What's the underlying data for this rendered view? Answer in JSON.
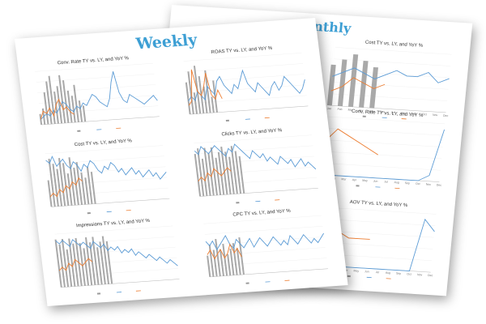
{
  "weekly": {
    "heading": "Weekly",
    "charts": [
      {
        "id": "w-conv",
        "title": "Conv. Rate TY vs. LY, and YoY %",
        "ly": [
          2,
          3,
          4,
          3,
          5,
          4,
          6,
          8,
          7,
          5,
          4,
          6,
          5,
          7,
          6,
          8,
          10,
          9,
          7,
          6,
          5,
          8,
          14,
          18,
          10,
          7,
          6,
          9,
          8,
          7,
          6,
          5,
          6,
          7,
          8,
          6
        ],
        "ty": [
          2,
          5,
          4,
          6,
          3,
          7,
          9,
          5,
          6,
          4,
          3
        ],
        "bars": [
          2,
          3,
          6,
          8,
          9,
          6,
          7,
          9,
          8,
          6,
          5,
          7,
          4,
          3
        ],
        "lmax": 20
      },
      {
        "id": "w-roas",
        "title": "ROAS TY vs. LY, and YoY %",
        "ly": [
          3,
          4,
          3,
          5,
          4,
          3,
          6,
          5,
          4,
          7,
          8,
          6,
          5,
          4,
          6,
          5,
          7,
          9,
          6,
          5,
          4,
          6,
          5,
          4,
          3,
          5,
          6,
          4,
          5,
          7,
          6,
          5,
          4,
          3,
          4,
          6
        ],
        "ty": [
          2,
          3,
          10,
          5,
          4,
          6,
          9,
          4,
          3,
          5,
          3
        ],
        "bars": [
          6,
          8,
          4,
          9,
          7,
          5,
          8,
          3,
          6
        ],
        "lmax": 12
      },
      {
        "id": "w-cost",
        "title": "Cost TY vs. LY, and YoY %",
        "ly": [
          14,
          13,
          15,
          12,
          13,
          14,
          12,
          11,
          13,
          12,
          10,
          12,
          11,
          13,
          12,
          10,
          9,
          11,
          10,
          12,
          11,
          9,
          10,
          8,
          9,
          10,
          8,
          9,
          7,
          8,
          9,
          7,
          8,
          6,
          7,
          8
        ],
        "ty": [
          3,
          4,
          3,
          5,
          4,
          6,
          5,
          7,
          6,
          8,
          7
        ],
        "bars": [
          5,
          9,
          8,
          7,
          9,
          8,
          6,
          9,
          7,
          8,
          6,
          5,
          7,
          6
        ],
        "lmax": 16
      },
      {
        "id": "w-clicks",
        "title": "Clicks TY vs. LY, and YoY %",
        "ly": [
          12,
          11,
          13,
          12,
          11,
          12,
          13,
          12,
          11,
          10,
          12,
          11,
          13,
          12,
          11,
          10,
          9,
          11,
          10,
          9,
          10,
          8,
          9,
          8,
          7,
          9,
          8,
          7,
          8,
          6,
          7,
          8,
          6,
          7,
          6,
          5
        ],
        "ty": [
          4,
          5,
          4,
          6,
          5,
          7,
          6,
          5,
          6,
          7,
          6
        ],
        "bars": [
          8,
          9,
          7,
          9,
          8,
          9,
          7,
          8,
          9,
          8,
          7,
          9,
          8,
          7
        ],
        "lmax": 14
      },
      {
        "id": "w-impr",
        "title": "Impressions TY vs. LY, and YoY %",
        "ly": [
          14,
          13,
          14,
          13,
          12,
          14,
          13,
          12,
          13,
          12,
          11,
          13,
          12,
          11,
          12,
          10,
          11,
          10,
          11,
          9,
          10,
          9,
          10,
          8,
          9,
          8,
          7,
          8,
          7,
          6,
          7,
          6,
          5,
          6,
          5,
          4
        ],
        "ty": [
          5,
          6,
          5,
          7,
          6,
          8,
          7,
          6,
          7,
          8,
          7
        ],
        "bars": [
          9,
          8,
          9,
          7,
          9,
          8,
          9,
          8,
          7,
          9,
          8,
          9,
          7,
          8,
          9,
          8
        ],
        "lmax": 16
      },
      {
        "id": "w-cpc",
        "title": "CPC TY vs. LY, and YoY %",
        "ly": [
          8,
          7,
          8,
          6,
          7,
          8,
          9,
          7,
          6,
          8,
          7,
          6,
          7,
          8,
          6,
          7,
          8,
          7,
          6,
          7,
          8,
          7,
          6,
          7,
          6,
          8,
          7,
          6,
          7,
          8,
          7,
          6,
          7,
          6,
          7,
          8
        ],
        "ty": [
          5,
          6,
          4,
          5,
          6,
          4,
          5,
          7,
          5,
          6,
          4
        ],
        "bars": [
          4,
          6,
          5,
          7,
          5,
          6,
          4,
          5,
          6,
          5,
          7
        ],
        "lmax": 12
      }
    ]
  },
  "monthly": {
    "heading": "Monthly",
    "charts": [
      {
        "id": "m-ctr",
        "title": "CTR TY vs. LY, and YoY %",
        "ly": [
          8,
          9,
          10,
          8,
          9,
          9,
          10,
          11,
          10,
          9,
          8,
          9
        ],
        "ty": [
          4,
          5,
          6,
          5,
          4,
          4
        ],
        "bars": [
          6,
          9,
          8,
          8,
          7,
          6
        ],
        "lmax": 12
      },
      {
        "id": "m-cost",
        "title": "Cost TY vs. LY, and YoY %",
        "ly": [
          6,
          7,
          8,
          7,
          6,
          7,
          8,
          7,
          7,
          8,
          6,
          7
        ],
        "ty": [
          3,
          4,
          6,
          5,
          4,
          5
        ],
        "bars": [
          7,
          8,
          9,
          8,
          7
        ],
        "lmax": 12
      },
      {
        "id": "m-conv",
        "title": "Conv. Rate TY vs. LY, and YoY %",
        "ly": [
          0,
          0,
          0,
          0,
          0,
          0,
          0,
          0,
          0,
          0,
          1,
          9
        ],
        "ty": [
          6,
          8,
          7,
          6,
          5,
          4
        ],
        "bars": [],
        "lmax": 10
      },
      {
        "id": "m-aov",
        "title": "AOV TY vs. LY, and YoY %",
        "ly": [
          0,
          0,
          0,
          0,
          0,
          0,
          0,
          0,
          0,
          0,
          9,
          7
        ],
        "ty": [
          5,
          6,
          6,
          5,
          5,
          5
        ],
        "bars": [],
        "lmax": 10
      }
    ],
    "months": [
      "Jan",
      "Feb",
      "Mar",
      "Apr",
      "May",
      "Jun",
      "Jul",
      "Aug",
      "Sep",
      "Oct",
      "Nov",
      "Dec"
    ]
  }
}
